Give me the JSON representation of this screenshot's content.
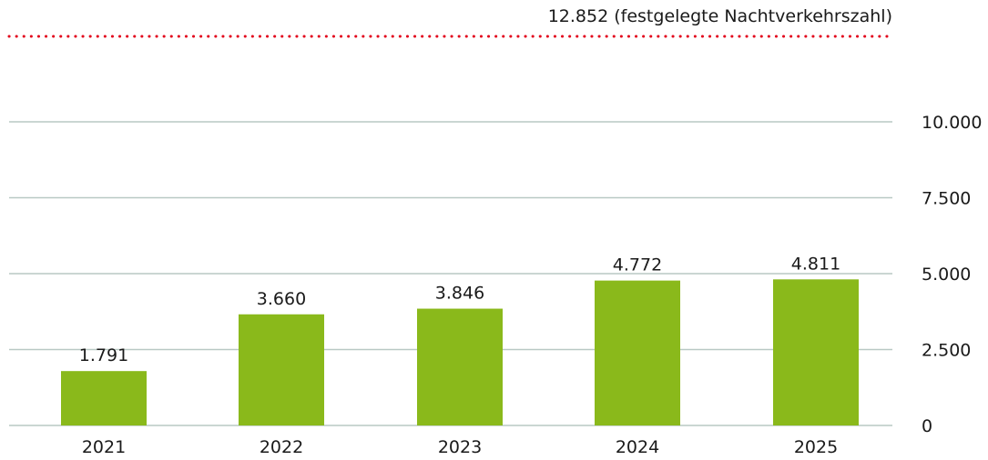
{
  "chart_data": {
    "type": "bar",
    "categories": [
      "2021",
      "2022",
      "2023",
      "2024",
      "2025"
    ],
    "values": [
      1791,
      3660,
      3846,
      4772,
      4811
    ],
    "value_labels": [
      "1.791",
      "3.660",
      "3.846",
      "4.772",
      "4.811"
    ],
    "title": "",
    "xlabel": "",
    "ylabel": "",
    "ylim": [
      0,
      10000
    ],
    "y_ticks": [
      0,
      2500,
      5000,
      7500,
      10000
    ],
    "y_tick_labels": [
      "0",
      "2.500",
      "5.000",
      "7.500",
      "10.000"
    ],
    "y_axis_side": "right",
    "grid": true,
    "reference_line": {
      "value": 12852,
      "label": "12.852 (festgelegte Nachtverkehrszahl)",
      "style": "dotted",
      "color": "#e2001a"
    },
    "colors": {
      "bar": "#8ab91b",
      "grid": "#b9c9c4",
      "text": "#1a1a1a"
    }
  }
}
